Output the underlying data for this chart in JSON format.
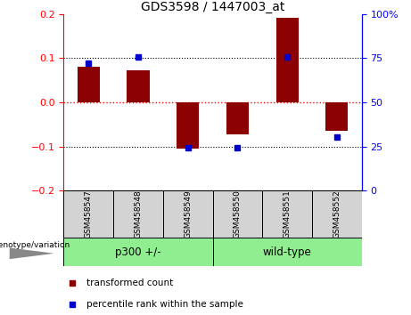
{
  "title": "GDS3598 / 1447003_at",
  "categories": [
    "GSM458547",
    "GSM458548",
    "GSM458549",
    "GSM458550",
    "GSM458551",
    "GSM458552"
  ],
  "red_bars": [
    0.08,
    0.072,
    -0.105,
    -0.072,
    0.192,
    -0.065
  ],
  "blue_squares": [
    0.089,
    0.102,
    -0.102,
    -0.102,
    0.102,
    -0.078
  ],
  "ylim": [
    -0.2,
    0.2
  ],
  "yticks_left": [
    -0.2,
    -0.1,
    0.0,
    0.1,
    0.2
  ],
  "yticks_right": [
    0,
    25,
    50,
    75,
    100
  ],
  "group1_label": "p300 +/-",
  "group2_label": "wild-type",
  "group1_color": "#90EE90",
  "group2_color": "#90EE90",
  "red_color": "#8B0000",
  "blue_color": "#0000CD",
  "legend_red": "transformed count",
  "legend_blue": "percentile rank within the sample",
  "xlabel_bottom": "genotype/variation",
  "bar_width": 0.45,
  "bg_gray": "#D3D3D3"
}
